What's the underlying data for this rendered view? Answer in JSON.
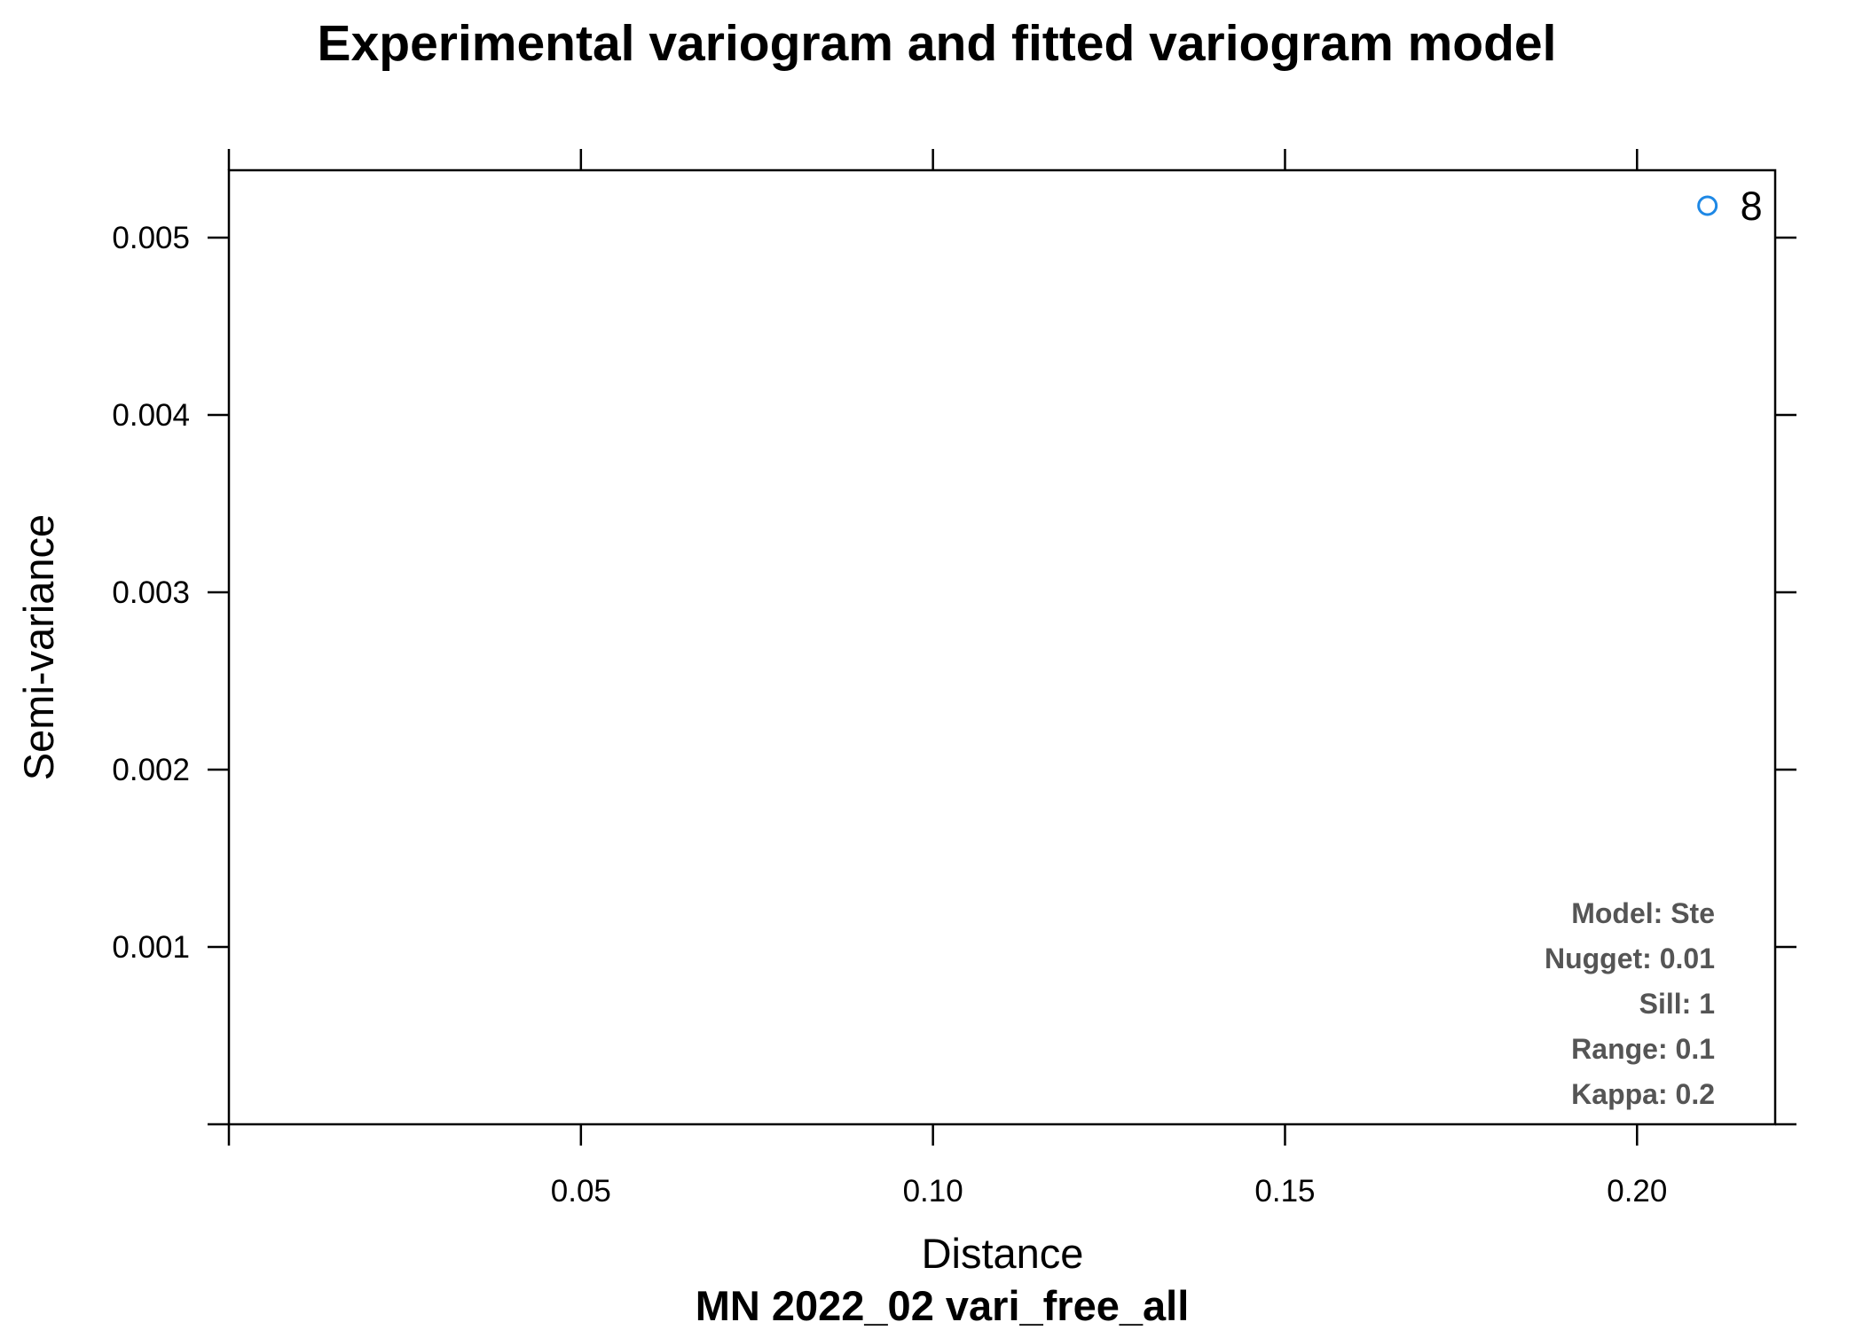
{
  "chart_data": {
    "type": "scatter",
    "title": "Experimental variogram and fitted variogram model",
    "subtitle": "MN 2022_02 vari_free_all",
    "xlabel": "Distance",
    "ylabel": "Semi-variance",
    "xlim": [
      0.0,
      0.218
    ],
    "ylim": [
      0.0,
      0.0054
    ],
    "x_ticks": [
      {
        "value": 0.0,
        "label": ""
      },
      {
        "value": 0.05,
        "label": "0.05"
      },
      {
        "value": 0.1,
        "label": "0.10"
      },
      {
        "value": 0.15,
        "label": "0.15"
      },
      {
        "value": 0.2,
        "label": "0.20"
      }
    ],
    "y_ticks": [
      {
        "value": 0.0,
        "label": ""
      },
      {
        "value": 0.001,
        "label": "0.001"
      },
      {
        "value": 0.002,
        "label": "0.002"
      },
      {
        "value": 0.003,
        "label": "0.003"
      },
      {
        "value": 0.004,
        "label": "0.004"
      },
      {
        "value": 0.005,
        "label": "0.005"
      }
    ],
    "points": [
      {
        "x": 0.21,
        "y": 0.00518,
        "label": "8"
      }
    ],
    "point_color": "#1e88e5",
    "info_lines": [
      "Model: Ste",
      "Nugget: 0.01",
      "Sill: 1",
      "Range: 0.1",
      "Kappa: 0.2"
    ],
    "info_color": "#555555",
    "grid": false
  }
}
